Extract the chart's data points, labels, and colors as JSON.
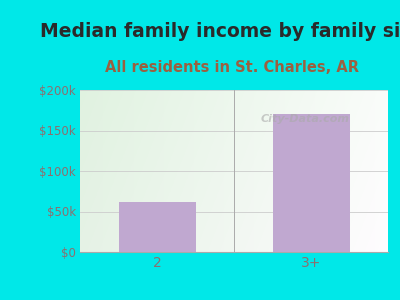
{
  "title": "Median family income by family size",
  "subtitle": "All residents in St. Charles, AR",
  "categories": [
    "2",
    "3+"
  ],
  "values": [
    62000,
    170000
  ],
  "bar_color": "#c0a8d0",
  "outer_bg": "#00e8e8",
  "title_color": "#2a2a2a",
  "subtitle_color": "#9b6040",
  "tick_color": "#8b7070",
  "ylim": [
    0,
    200000
  ],
  "yticks": [
    0,
    50000,
    100000,
    150000,
    200000
  ],
  "ytick_labels": [
    "$0",
    "$50k",
    "$100k",
    "$150k",
    "$200k"
  ],
  "watermark": "City-Data.com",
  "title_fontsize": 13.5,
  "subtitle_fontsize": 10.5
}
